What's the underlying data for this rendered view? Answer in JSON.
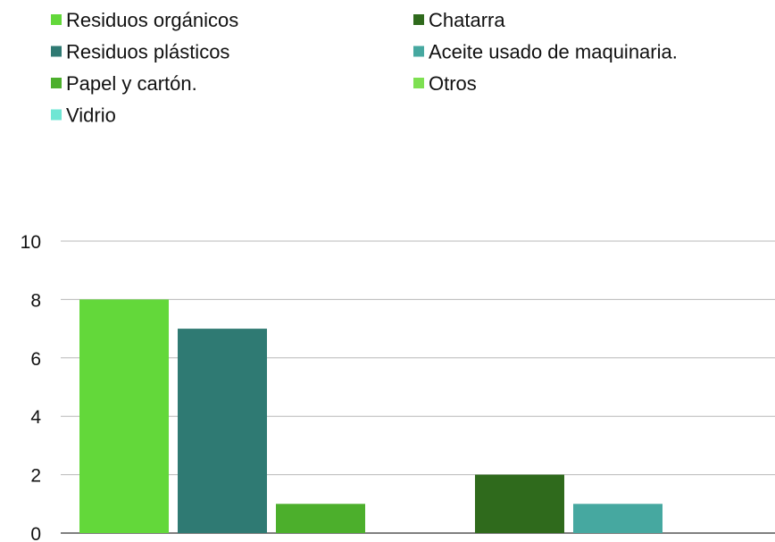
{
  "chart_data": {
    "type": "bar",
    "series": [
      {
        "name": "Residuos orgánicos",
        "color": "#63d83a",
        "values": [
          8,
          null
        ]
      },
      {
        "name": "Residuos plásticos",
        "color": "#2f7a73",
        "values": [
          7,
          null
        ]
      },
      {
        "name": "Papel y cartón.",
        "color": "#4caf2c",
        "values": [
          1,
          null
        ]
      },
      {
        "name": "Vidrio",
        "color": "#6fe6d4",
        "values": [
          null,
          null
        ]
      },
      {
        "name": "Chatarra",
        "color": "#2f6a1c",
        "values": [
          null,
          2
        ]
      },
      {
        "name": "Aceite usado de maquinaria.",
        "color": "#46a8a0",
        "values": [
          null,
          1
        ]
      },
      {
        "name": "Otros",
        "color": "#7ee052",
        "values": [
          null,
          null
        ]
      }
    ],
    "ylim": [
      0,
      10
    ],
    "yticks": [
      "0",
      "2",
      "4",
      "6",
      "8",
      "10"
    ],
    "grid": true,
    "legend_position": "top",
    "xlabel": "",
    "ylabel": ""
  }
}
